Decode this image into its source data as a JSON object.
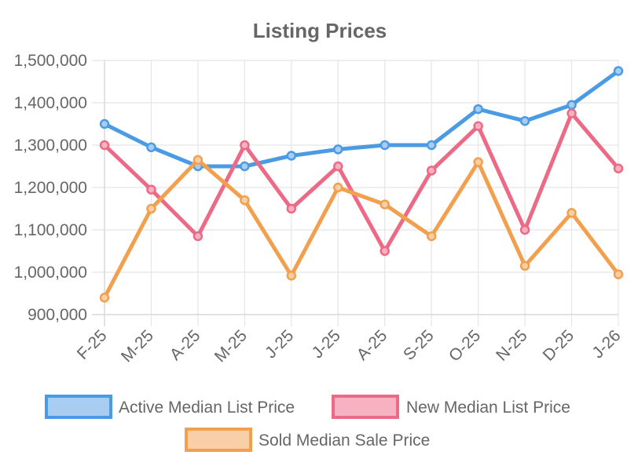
{
  "chart_data": {
    "type": "line",
    "title": "Listing Prices",
    "xlabel": "",
    "ylabel": "",
    "categories": [
      "F-25",
      "M-25",
      "A-25",
      "M-25",
      "J-25",
      "J-25",
      "A-25",
      "S-25",
      "O-25",
      "N-25",
      "D-25",
      "J-26"
    ],
    "ylim": [
      900000,
      1500000
    ],
    "yticks": [
      900000,
      1000000,
      1100000,
      1200000,
      1300000,
      1400000,
      1500000
    ],
    "ytick_labels": [
      "900,000",
      "1,000,000",
      "1,100,000",
      "1,200,000",
      "1,300,000",
      "1,400,000",
      "1,500,000"
    ],
    "grid": true,
    "legend_position": "bottom",
    "series": [
      {
        "name": "Active Median List Price",
        "color": "#4a9be3",
        "fill": "#a9cdf1",
        "values": [
          1350000,
          1295000,
          1250000,
          1250000,
          1275000,
          1290000,
          1300000,
          1300000,
          1385000,
          1357000,
          1395000,
          1475000
        ]
      },
      {
        "name": "New Median List Price",
        "color": "#ec6a86",
        "fill": "#f6b2c1",
        "values": [
          1300000,
          1195000,
          1085000,
          1300000,
          1150000,
          1250000,
          1050000,
          1240000,
          1345000,
          1100000,
          1375000,
          1245000
        ]
      },
      {
        "name": "Sold Median Sale Price",
        "color": "#f3a04e",
        "fill": "#f8cfa6",
        "values": [
          940000,
          1150000,
          1265000,
          1170000,
          992000,
          1200000,
          1160000,
          1085000,
          1260000,
          1015000,
          1140000,
          995000
        ]
      }
    ]
  }
}
